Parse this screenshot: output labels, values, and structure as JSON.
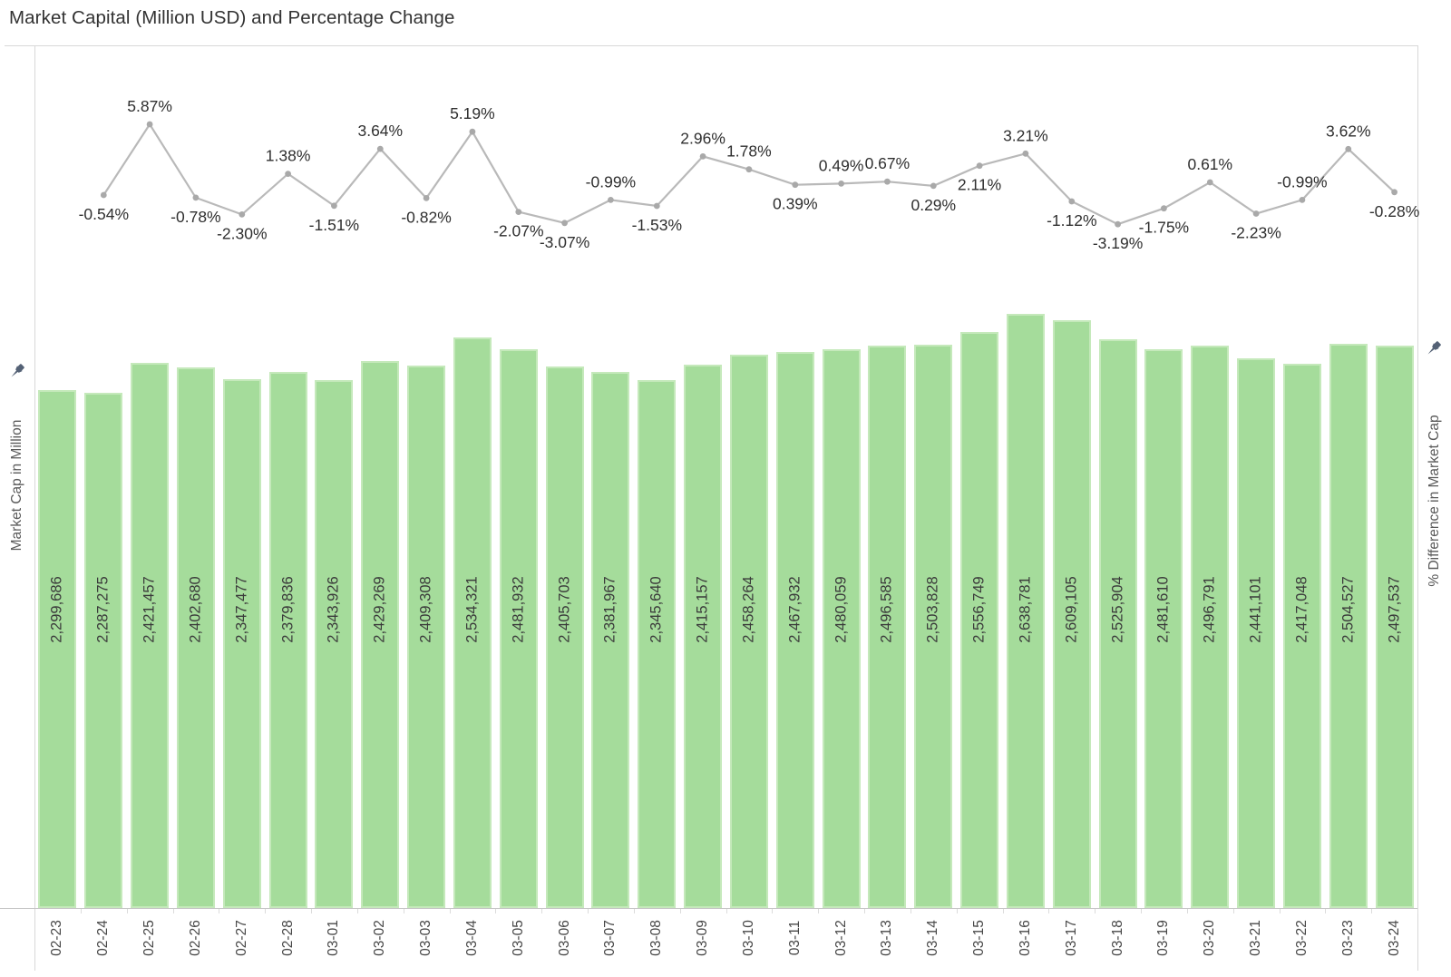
{
  "page": {
    "title": "Market Capital (Million USD) and Percentage Change"
  },
  "chart_data": {
    "type": "bar+line",
    "title": "Market Capital (Million USD) and Percentage Change",
    "categories": [
      "02-23",
      "02-24",
      "02-25",
      "02-26",
      "02-27",
      "02-28",
      "03-01",
      "03-02",
      "03-03",
      "03-04",
      "03-05",
      "03-06",
      "03-07",
      "03-08",
      "03-09",
      "03-10",
      "03-11",
      "03-12",
      "03-13",
      "03-14",
      "03-15",
      "03-16",
      "03-17",
      "03-18",
      "03-19",
      "03-20",
      "03-21",
      "03-22",
      "03-23",
      "03-24"
    ],
    "series": [
      {
        "name": "Market Cap in Million",
        "type": "bar",
        "color": "#a5dc9b",
        "values": [
          2299686,
          2287275,
          2421457,
          2402680,
          2347477,
          2379836,
          2343926,
          2429269,
          2409308,
          2534321,
          2481932,
          2405703,
          2381967,
          2345640,
          2415157,
          2458264,
          2467932,
          2480059,
          2496585,
          2503828,
          2556749,
          2638781,
          2609105,
          2525904,
          2481610,
          2496791,
          2441101,
          2417048,
          2504527,
          2497537
        ],
        "labels": [
          "2,299,686",
          "2,287,275",
          "2,421,457",
          "2,402,680",
          "2,347,477",
          "2,379,836",
          "2,343,926",
          "2,429,269",
          "2,409,308",
          "2,534,321",
          "2,481,932",
          "2,405,703",
          "2,381,967",
          "2,345,640",
          "2,415,157",
          "2,458,264",
          "2,467,932",
          "2,480,059",
          "2,496,585",
          "2,503,828",
          "2,556,749",
          "2,638,781",
          "2,609,105",
          "2,525,904",
          "2,481,610",
          "2,496,791",
          "2,441,101",
          "2,417,048",
          "2,504,527",
          "2,497,537"
        ]
      },
      {
        "name": "% Difference in Market Cap",
        "type": "line",
        "color": "#b9b9b9",
        "first_category": "02-24",
        "values": [
          -0.54,
          5.87,
          -0.78,
          -2.3,
          1.38,
          -1.51,
          3.64,
          -0.82,
          5.19,
          -2.07,
          -3.07,
          -0.99,
          -1.53,
          2.96,
          1.78,
          0.39,
          0.49,
          0.67,
          0.29,
          2.11,
          3.21,
          -1.12,
          -3.19,
          -1.75,
          0.61,
          -2.23,
          -0.99,
          3.62,
          -0.28
        ],
        "labels": [
          "-0.54%",
          "5.87%",
          "-0.78%",
          "-2.30%",
          "1.38%",
          "-1.51%",
          "3.64%",
          "-0.82%",
          "5.19%",
          "-2.07%",
          "-3.07%",
          "-0.99%",
          "-1.53%",
          "2.96%",
          "1.78%",
          "0.39%",
          "0.49%",
          "0.67%",
          "0.29%",
          "2.11%",
          "3.21%",
          "-1.12%",
          "-3.19%",
          "-1.75%",
          "0.61%",
          "-2.23%",
          "-0.99%",
          "3.62%",
          "-0.28%"
        ],
        "label_sides": [
          "below",
          "above",
          "below",
          "below",
          "above",
          "below",
          "above",
          "below",
          "above",
          "below",
          "below",
          "above",
          "below",
          "above",
          "above",
          "below",
          "above",
          "above",
          "below",
          "below",
          "above",
          "below",
          "below",
          "below",
          "above",
          "below",
          "above",
          "above",
          "below"
        ]
      }
    ],
    "axes": {
      "left_label": "Market Cap in Million",
      "right_label": "% Difference in Market Cap",
      "bar_baseline": 0,
      "x_tick_labels_rotated": true
    },
    "legend": "none",
    "grid": "off"
  },
  "icons": {
    "left_pin": "pushpin-icon",
    "right_pin": "pushpin-icon"
  },
  "colors": {
    "bar_fill": "#a5dc9b",
    "bar_border": "#c5e9bb",
    "line": "#b9b9b9",
    "marker": "#a9a9a9",
    "pct_label_text": "#2f2f2f",
    "bar_label_text": "#3b3b3b",
    "date_text": "#484848",
    "axis_title_text": "#5a5a5a",
    "plot_border": "#d8d8d8",
    "axis_line": "#c6c6c6",
    "title_text": "#323232",
    "pin": "#546175"
  }
}
